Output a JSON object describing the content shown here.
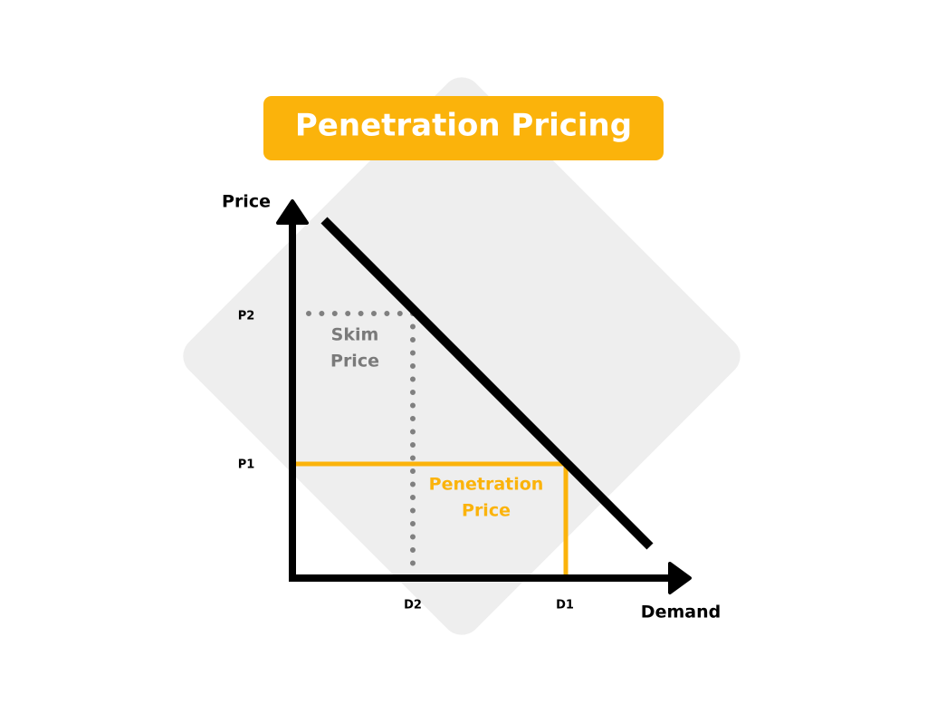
{
  "title": "Penetration Pricing",
  "axes": {
    "y_label": "Price",
    "x_label": "Demand"
  },
  "price_levels": [
    "P2",
    "P1"
  ],
  "demand_levels": [
    "D2",
    "D1"
  ],
  "regions": {
    "skim": [
      "Skim",
      "Price"
    ],
    "penetration": [
      "Penetration",
      "Price"
    ]
  }
}
